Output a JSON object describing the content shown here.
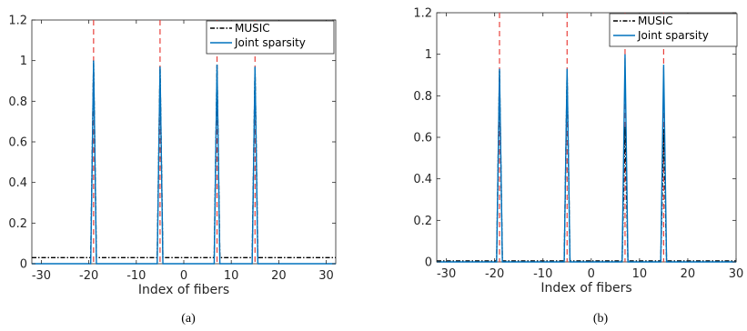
{
  "chart_data": [
    {
      "type": "line",
      "caption": "(a)",
      "xlabel": "Index of fibers",
      "ylabel": "",
      "xlim": [
        -32,
        32
      ],
      "ylim": [
        0,
        1.2
      ],
      "xticks": [
        -30,
        -20,
        -10,
        0,
        10,
        20,
        30
      ],
      "yticks": [
        0,
        0.2,
        0.4,
        0.6,
        0.8,
        1,
        1.2
      ],
      "ytick_labels": [
        "0",
        "0.2",
        "0.4",
        "0.6",
        "0.8",
        "1",
        "1.2"
      ],
      "grid": false,
      "legend_position": "top-right",
      "true_positions": [
        -19,
        -5,
        7,
        15
      ],
      "series": [
        {
          "name": "MUSIC",
          "style": "dashdot",
          "color": "#000000",
          "baseline": 0.03,
          "peaks": [
            {
              "x": -19,
              "y": 1.0
            },
            {
              "x": -5,
              "y": 0.97
            },
            {
              "x": 7,
              "y": 0.98
            },
            {
              "x": 15,
              "y": 0.97
            }
          ]
        },
        {
          "name": "Joint sparsity",
          "style": "solid",
          "color": "#0072bd",
          "baseline": 0.0,
          "peaks": [
            {
              "x": -19,
              "y": 1.0
            },
            {
              "x": -5,
              "y": 0.97
            },
            {
              "x": 7,
              "y": 0.98
            },
            {
              "x": 15,
              "y": 0.97
            }
          ]
        }
      ]
    },
    {
      "type": "line",
      "caption": "(b)",
      "xlabel": "Index of fibers",
      "ylabel": "",
      "xlim": [
        -32,
        30
      ],
      "ylim": [
        0,
        1.2
      ],
      "xticks": [
        -30,
        -20,
        -10,
        0,
        10,
        20,
        30
      ],
      "yticks": [
        0,
        0.2,
        0.4,
        0.6,
        0.8,
        1,
        1.2
      ],
      "ytick_labels": [
        "0",
        "0.2",
        "0.4",
        "0.6",
        "0.8",
        "1",
        "1.2"
      ],
      "grid": false,
      "legend_position": "top-right",
      "true_positions": [
        -19,
        -5,
        7,
        15
      ],
      "series": [
        {
          "name": "MUSIC",
          "style": "dashdot",
          "color": "#000000",
          "baseline": 0.005,
          "peaks": [
            {
              "x": -19,
              "y": 0.92
            },
            {
              "x": -5,
              "y": 0.92
            },
            {
              "x": 7,
              "y": 0.65
            },
            {
              "x": 15,
              "y": 0.64
            }
          ]
        },
        {
          "name": "Joint sparsity",
          "style": "solid",
          "color": "#0072bd",
          "baseline": 0.0,
          "peaks": [
            {
              "x": -19,
              "y": 0.93
            },
            {
              "x": -5,
              "y": 0.93
            },
            {
              "x": 7,
              "y": 1.0
            },
            {
              "x": 15,
              "y": 0.95
            }
          ]
        }
      ]
    }
  ]
}
